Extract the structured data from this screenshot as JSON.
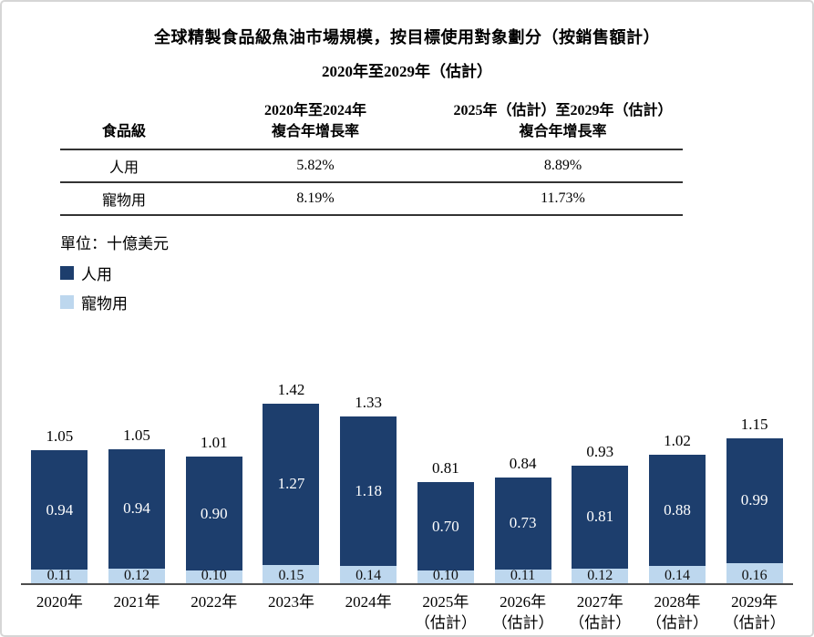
{
  "title": "全球精製食品級魚油市場規模，按目標使用對象劃分（按銷售額計）",
  "subtitle": "2020年至2029年（估計）",
  "table": {
    "col1_header": "食品級",
    "col2_header_line1": "2020年至2024年",
    "col2_header_line2": "複合年增長率",
    "col3_header_line1": "2025年（估計）至2029年（估計）",
    "col3_header_line2": "複合年增長率",
    "rows": [
      {
        "label": "人用",
        "cagr_2020_2024": "5.82%",
        "cagr_2025_2029": "8.89%"
      },
      {
        "label": "寵物用",
        "cagr_2020_2024": "8.19%",
        "cagr_2025_2029": "11.73%"
      }
    ]
  },
  "unit_label": "單位：十億美元",
  "legend": {
    "items": [
      {
        "label": "人用",
        "color": "#1d3e6d"
      },
      {
        "label": "寵物用",
        "color": "#bdd7ee"
      }
    ]
  },
  "colors": {
    "human_bar": "#1d3e6d",
    "pet_bar": "#bdd7ee",
    "axis_line": "#4d4d4d"
  },
  "chart_data": {
    "type": "bar",
    "stacked": true,
    "unit": "十億美元",
    "title": "全球精製食品級魚油市場規模，按目標使用對象劃分（按銷售額計）2020年至2029年（估計）",
    "categories": [
      [
        "2020年"
      ],
      [
        "2021年"
      ],
      [
        "2022年"
      ],
      [
        "2023年"
      ],
      [
        "2024年"
      ],
      [
        "2025年",
        "（估計）"
      ],
      [
        "2026年",
        "（估計）"
      ],
      [
        "2027年",
        "（估計）"
      ],
      [
        "2028年",
        "（估計）"
      ],
      [
        "2029年",
        "（估計）"
      ]
    ],
    "series": [
      {
        "name": "人用",
        "color": "#1d3e6d",
        "values": [
          0.94,
          0.94,
          0.9,
          1.27,
          1.18,
          0.7,
          0.73,
          0.81,
          0.88,
          0.99
        ]
      },
      {
        "name": "寵物用",
        "color": "#bdd7ee",
        "values": [
          0.11,
          0.12,
          0.1,
          0.15,
          0.14,
          0.1,
          0.11,
          0.12,
          0.14,
          0.16
        ]
      }
    ],
    "totals": [
      1.05,
      1.05,
      1.01,
      1.42,
      1.33,
      0.81,
      0.84,
      0.93,
      1.02,
      1.15
    ],
    "ylim": [
      0,
      1.5
    ],
    "grid": false,
    "legend_position": "top-left",
    "value_labels": "inside-and-total-above"
  }
}
